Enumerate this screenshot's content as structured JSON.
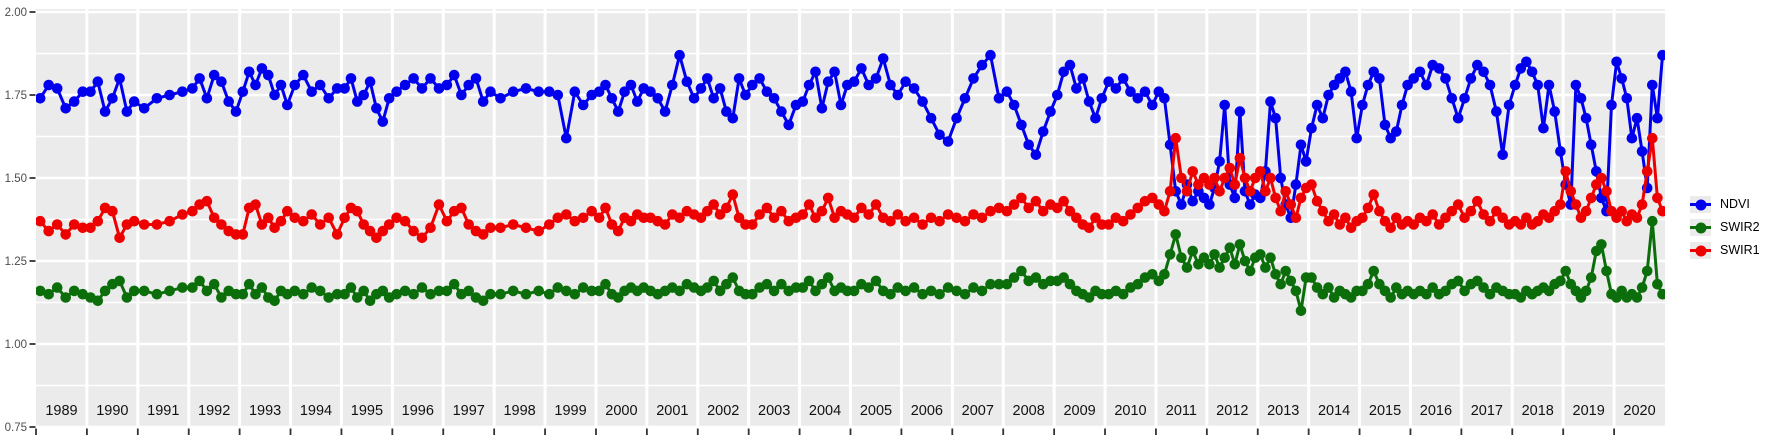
{
  "chart_data": {
    "type": "line",
    "title": "",
    "xlabel": "",
    "ylabel": "",
    "x_range": [
      1989,
      2021
    ],
    "ylim_visible": [
      0.75,
      2.0
    ],
    "grid": true,
    "legend_position": "right",
    "panel_bg_color": "#ebebeb",
    "grid_color": "#ffffff",
    "axis_text_color": "#4d4d4d",
    "year_label_color": "#111111",
    "tick_color": "#333333",
    "y_ticks": {
      "values": [
        2.0,
        1.75,
        1.5,
        1.25,
        1.0,
        0.75
      ],
      "labels": [
        "2.00",
        "1.75",
        "1.50",
        "1.25",
        "1.00",
        "0.75"
      ]
    },
    "x_years": [
      1989,
      1990,
      1991,
      1992,
      1993,
      1994,
      1995,
      1996,
      1997,
      1998,
      1999,
      2000,
      2001,
      2002,
      2003,
      2004,
      2005,
      2006,
      2007,
      2008,
      2009,
      2010,
      2011,
      2012,
      2013,
      2014,
      2015,
      2016,
      2017,
      2018,
      2019,
      2020
    ],
    "series": [
      {
        "name": "NDVI",
        "color": "#0000ee",
        "by_year": {
          "1989": [
            1.74,
            1.78,
            1.77,
            1.71,
            1.73,
            1.76
          ],
          "1990": [
            1.76,
            1.79,
            1.7,
            1.74,
            1.8,
            1.7,
            1.73
          ],
          "1991": [
            1.71,
            1.74,
            1.75,
            1.76
          ],
          "1992": [
            1.77,
            1.8,
            1.74,
            1.81,
            1.79,
            1.73,
            1.7
          ],
          "1993": [
            1.76,
            1.82,
            1.78,
            1.83,
            1.81,
            1.75,
            1.78,
            1.72
          ],
          "1994": [
            1.78,
            1.81,
            1.76,
            1.78,
            1.74,
            1.77
          ],
          "1995": [
            1.77,
            1.8,
            1.73,
            1.75,
            1.79,
            1.71,
            1.67,
            1.74
          ],
          "1996": [
            1.76,
            1.78,
            1.8,
            1.77,
            1.8,
            1.77
          ],
          "1997": [
            1.78,
            1.81,
            1.75,
            1.78,
            1.8,
            1.73,
            1.76
          ],
          "1998": [
            1.74,
            1.76,
            1.77,
            1.76
          ],
          "1999": [
            1.76,
            1.75,
            1.62,
            1.76,
            1.72,
            1.75
          ],
          "2000": [
            1.76,
            1.78,
            1.74,
            1.7,
            1.76,
            1.78,
            1.73,
            1.77
          ],
          "2001": [
            1.76,
            1.74,
            1.7,
            1.78,
            1.87,
            1.79,
            1.74
          ],
          "2002": [
            1.77,
            1.8,
            1.74,
            1.77,
            1.7,
            1.68,
            1.8,
            1.75
          ],
          "2003": [
            1.78,
            1.8,
            1.76,
            1.74,
            1.7,
            1.66,
            1.72
          ],
          "2004": [
            1.73,
            1.78,
            1.82,
            1.71,
            1.79,
            1.82,
            1.72,
            1.78
          ],
          "2005": [
            1.79,
            1.83,
            1.78,
            1.8,
            1.86,
            1.78,
            1.75
          ],
          "2006": [
            1.79,
            1.77,
            1.73,
            1.68,
            1.63,
            1.61
          ],
          "2007": [
            1.68,
            1.74,
            1.8,
            1.84,
            1.87,
            1.74
          ],
          "2008": [
            1.76,
            1.72,
            1.66,
            1.6,
            1.57,
            1.64,
            1.7
          ],
          "2009": [
            1.75,
            1.82,
            1.84,
            1.77,
            1.8,
            1.73,
            1.68,
            1.74
          ],
          "2010": [
            1.79,
            1.77,
            1.8,
            1.76,
            1.74,
            1.76,
            1.72
          ],
          "2011": [
            1.76,
            1.74,
            1.6,
            1.46,
            1.42,
            1.48,
            1.43,
            1.46,
            1.44
          ],
          "2012": [
            1.42,
            1.47,
            1.55,
            1.72,
            1.48,
            1.44,
            1.7,
            1.46,
            1.42,
            1.45
          ],
          "2013": [
            1.44,
            1.52,
            1.73,
            1.68,
            1.5,
            1.42,
            1.38,
            1.48,
            1.6,
            1.55
          ],
          "2014": [
            1.65,
            1.72,
            1.68,
            1.75,
            1.78,
            1.8,
            1.82,
            1.76,
            1.62
          ],
          "2015": [
            1.72,
            1.78,
            1.82,
            1.8,
            1.66,
            1.62,
            1.64,
            1.72,
            1.78
          ],
          "2016": [
            1.8,
            1.82,
            1.78,
            1.84,
            1.83,
            1.8,
            1.74,
            1.68
          ],
          "2017": [
            1.74,
            1.8,
            1.84,
            1.82,
            1.78,
            1.7,
            1.57,
            1.72
          ],
          "2018": [
            1.78,
            1.83,
            1.85,
            1.82,
            1.78,
            1.65,
            1.78,
            1.7,
            1.58
          ],
          "2019": [
            1.48,
            1.42,
            1.78,
            1.74,
            1.68,
            1.6,
            1.52,
            1.44,
            1.4,
            1.72
          ],
          "2020": [
            1.85,
            1.8,
            1.74,
            1.62,
            1.68,
            1.58,
            1.47,
            1.78,
            1.68,
            1.87
          ]
        }
      },
      {
        "name": "SWIR2",
        "color": "#0b6e0b",
        "by_year": {
          "1989": [
            1.16,
            1.15,
            1.17,
            1.14,
            1.16,
            1.15
          ],
          "1990": [
            1.14,
            1.13,
            1.16,
            1.18,
            1.19,
            1.14,
            1.16
          ],
          "1991": [
            1.16,
            1.15,
            1.16,
            1.17
          ],
          "1992": [
            1.17,
            1.19,
            1.16,
            1.18,
            1.14,
            1.16,
            1.15
          ],
          "1993": [
            1.15,
            1.18,
            1.15,
            1.17,
            1.14,
            1.13,
            1.16,
            1.15
          ],
          "1994": [
            1.16,
            1.15,
            1.17,
            1.16,
            1.14,
            1.15
          ],
          "1995": [
            1.15,
            1.17,
            1.14,
            1.16,
            1.13,
            1.15,
            1.16,
            1.14
          ],
          "1996": [
            1.15,
            1.16,
            1.15,
            1.17,
            1.15,
            1.16
          ],
          "1997": [
            1.16,
            1.18,
            1.15,
            1.16,
            1.14,
            1.13,
            1.15
          ],
          "1998": [
            1.15,
            1.16,
            1.15,
            1.16
          ],
          "1999": [
            1.15,
            1.17,
            1.16,
            1.15,
            1.17,
            1.16
          ],
          "2000": [
            1.16,
            1.18,
            1.15,
            1.14,
            1.16,
            1.17,
            1.16,
            1.17
          ],
          "2001": [
            1.16,
            1.15,
            1.16,
            1.17,
            1.16,
            1.18,
            1.17
          ],
          "2002": [
            1.16,
            1.17,
            1.19,
            1.16,
            1.18,
            1.2,
            1.16,
            1.15
          ],
          "2003": [
            1.15,
            1.17,
            1.18,
            1.16,
            1.18,
            1.16,
            1.17
          ],
          "2004": [
            1.17,
            1.19,
            1.16,
            1.18,
            1.2,
            1.16,
            1.17,
            1.16
          ],
          "2005": [
            1.16,
            1.18,
            1.17,
            1.19,
            1.16,
            1.15,
            1.17
          ],
          "2006": [
            1.16,
            1.17,
            1.15,
            1.16,
            1.15,
            1.17
          ],
          "2007": [
            1.16,
            1.15,
            1.17,
            1.16,
            1.18,
            1.18
          ],
          "2008": [
            1.18,
            1.2,
            1.22,
            1.19,
            1.2,
            1.18,
            1.19
          ],
          "2009": [
            1.19,
            1.2,
            1.18,
            1.16,
            1.15,
            1.14,
            1.16,
            1.15
          ],
          "2010": [
            1.15,
            1.16,
            1.15,
            1.17,
            1.18,
            1.2,
            1.21
          ],
          "2011": [
            1.19,
            1.21,
            1.27,
            1.33,
            1.26,
            1.23,
            1.28,
            1.24,
            1.26
          ],
          "2012": [
            1.24,
            1.27,
            1.23,
            1.26,
            1.29,
            1.24,
            1.3,
            1.25,
            1.22,
            1.26
          ],
          "2013": [
            1.27,
            1.23,
            1.26,
            1.21,
            1.18,
            1.22,
            1.19,
            1.16,
            1.1,
            1.2
          ],
          "2014": [
            1.2,
            1.17,
            1.15,
            1.17,
            1.14,
            1.16,
            1.15,
            1.14,
            1.16
          ],
          "2015": [
            1.16,
            1.18,
            1.22,
            1.18,
            1.16,
            1.14,
            1.17,
            1.15,
            1.16
          ],
          "2016": [
            1.15,
            1.16,
            1.15,
            1.17,
            1.15,
            1.16,
            1.18,
            1.19
          ],
          "2017": [
            1.16,
            1.18,
            1.19,
            1.17,
            1.15,
            1.17,
            1.16,
            1.15
          ],
          "2018": [
            1.15,
            1.14,
            1.16,
            1.15,
            1.16,
            1.17,
            1.16,
            1.18,
            1.19
          ],
          "2019": [
            1.22,
            1.18,
            1.16,
            1.14,
            1.16,
            1.2,
            1.28,
            1.3,
            1.22,
            1.15
          ],
          "2020": [
            1.14,
            1.16,
            1.14,
            1.15,
            1.14,
            1.17,
            1.22,
            1.37,
            1.18,
            1.15
          ]
        }
      },
      {
        "name": "SWIR1",
        "color": "#ee0000",
        "by_year": {
          "1989": [
            1.37,
            1.34,
            1.36,
            1.33,
            1.36,
            1.35
          ],
          "1990": [
            1.35,
            1.37,
            1.41,
            1.4,
            1.32,
            1.36,
            1.37
          ],
          "1991": [
            1.36,
            1.36,
            1.37,
            1.39
          ],
          "1992": [
            1.4,
            1.42,
            1.43,
            1.38,
            1.36,
            1.34,
            1.33
          ],
          "1993": [
            1.33,
            1.41,
            1.42,
            1.36,
            1.38,
            1.35,
            1.37,
            1.4
          ],
          "1994": [
            1.38,
            1.37,
            1.39,
            1.36,
            1.38,
            1.33
          ],
          "1995": [
            1.38,
            1.41,
            1.4,
            1.36,
            1.34,
            1.32,
            1.34,
            1.36
          ],
          "1996": [
            1.38,
            1.37,
            1.34,
            1.32,
            1.35,
            1.42
          ],
          "1997": [
            1.37,
            1.4,
            1.41,
            1.36,
            1.34,
            1.33,
            1.35
          ],
          "1998": [
            1.35,
            1.36,
            1.35,
            1.34
          ],
          "1999": [
            1.36,
            1.38,
            1.39,
            1.37,
            1.38,
            1.4
          ],
          "2000": [
            1.38,
            1.41,
            1.36,
            1.34,
            1.38,
            1.37,
            1.39,
            1.38
          ],
          "2001": [
            1.38,
            1.37,
            1.36,
            1.39,
            1.38,
            1.4,
            1.39
          ],
          "2002": [
            1.38,
            1.4,
            1.42,
            1.39,
            1.41,
            1.45,
            1.38,
            1.36
          ],
          "2003": [
            1.36,
            1.39,
            1.41,
            1.38,
            1.4,
            1.37,
            1.38
          ],
          "2004": [
            1.39,
            1.42,
            1.38,
            1.4,
            1.44,
            1.38,
            1.4,
            1.39
          ],
          "2005": [
            1.38,
            1.41,
            1.39,
            1.42,
            1.38,
            1.37,
            1.39
          ],
          "2006": [
            1.37,
            1.38,
            1.36,
            1.38,
            1.37,
            1.39
          ],
          "2007": [
            1.38,
            1.37,
            1.39,
            1.38,
            1.4,
            1.41
          ],
          "2008": [
            1.4,
            1.42,
            1.44,
            1.41,
            1.43,
            1.4,
            1.42
          ],
          "2009": [
            1.41,
            1.43,
            1.4,
            1.38,
            1.36,
            1.35,
            1.38,
            1.36
          ],
          "2010": [
            1.36,
            1.38,
            1.37,
            1.39,
            1.41,
            1.43,
            1.44
          ],
          "2011": [
            1.42,
            1.4,
            1.46,
            1.62,
            1.5,
            1.46,
            1.52,
            1.48,
            1.5
          ],
          "2012": [
            1.48,
            1.5,
            1.46,
            1.5,
            1.53,
            1.48,
            1.56,
            1.5,
            1.46,
            1.5
          ],
          "2013": [
            1.52,
            1.46,
            1.5,
            1.44,
            1.4,
            1.46,
            1.42,
            1.38,
            1.44,
            1.47
          ],
          "2014": [
            1.48,
            1.43,
            1.4,
            1.37,
            1.39,
            1.36,
            1.38,
            1.35,
            1.37
          ],
          "2015": [
            1.38,
            1.41,
            1.45,
            1.4,
            1.37,
            1.35,
            1.38,
            1.36,
            1.37
          ],
          "2016": [
            1.36,
            1.38,
            1.37,
            1.39,
            1.36,
            1.38,
            1.4,
            1.42
          ],
          "2017": [
            1.38,
            1.4,
            1.43,
            1.39,
            1.37,
            1.4,
            1.38,
            1.36
          ],
          "2018": [
            1.37,
            1.36,
            1.38,
            1.36,
            1.37,
            1.39,
            1.38,
            1.4,
            1.42
          ],
          "2019": [
            1.52,
            1.46,
            1.42,
            1.38,
            1.4,
            1.44,
            1.48,
            1.5,
            1.46,
            1.4
          ],
          "2020": [
            1.38,
            1.4,
            1.37,
            1.39,
            1.38,
            1.42,
            1.52,
            1.62,
            1.44,
            1.4
          ]
        }
      }
    ]
  },
  "legend": {
    "items": [
      {
        "label": "NDVI"
      },
      {
        "label": "SWIR2"
      },
      {
        "label": "SWIR1"
      }
    ]
  }
}
